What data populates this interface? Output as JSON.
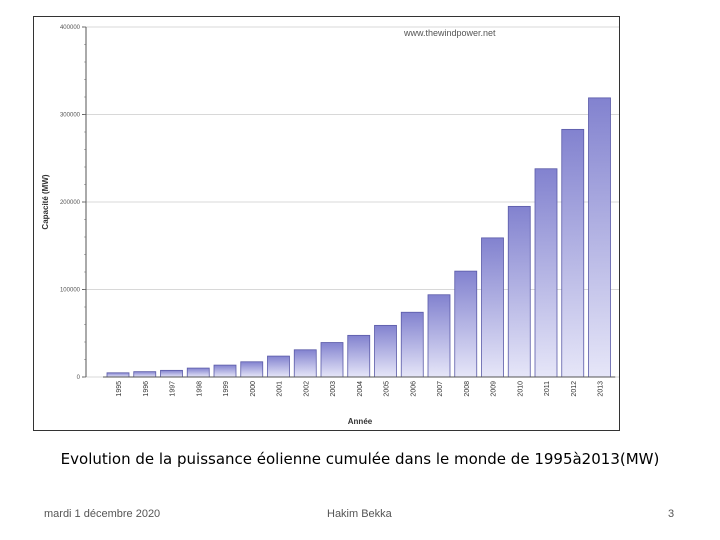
{
  "chart_data": {
    "type": "bar",
    "watermark": "www.thewindpower.net",
    "xlabel": "Année",
    "ylabel": "Capacité (MW)",
    "ylim": [
      0,
      400000
    ],
    "yticks": [
      0,
      100000,
      200000,
      300000,
      400000
    ],
    "ytick_labels": [
      "0",
      "100000",
      "200000",
      "300000",
      "400000"
    ],
    "categories": [
      "1995",
      "1996",
      "1997",
      "1998",
      "1999",
      "2000",
      "2001",
      "2002",
      "2003",
      "2004",
      "2005",
      "2006",
      "2007",
      "2008",
      "2009",
      "2010",
      "2011",
      "2012",
      "2013"
    ],
    "values": [
      4800,
      6100,
      7600,
      10200,
      13600,
      17400,
      23900,
      31100,
      39400,
      47600,
      59000,
      74000,
      94000,
      121000,
      159000,
      195000,
      238000,
      283000,
      319000
    ],
    "grid": true,
    "bar_color": "#8a8ad4"
  },
  "caption": "Evolution de la puissance éolienne cumulée dans le monde de 1995à2013(MW)",
  "footer": {
    "date": "mardi 1 décembre 2020",
    "author": "Hakim Bekka",
    "page": "3"
  }
}
